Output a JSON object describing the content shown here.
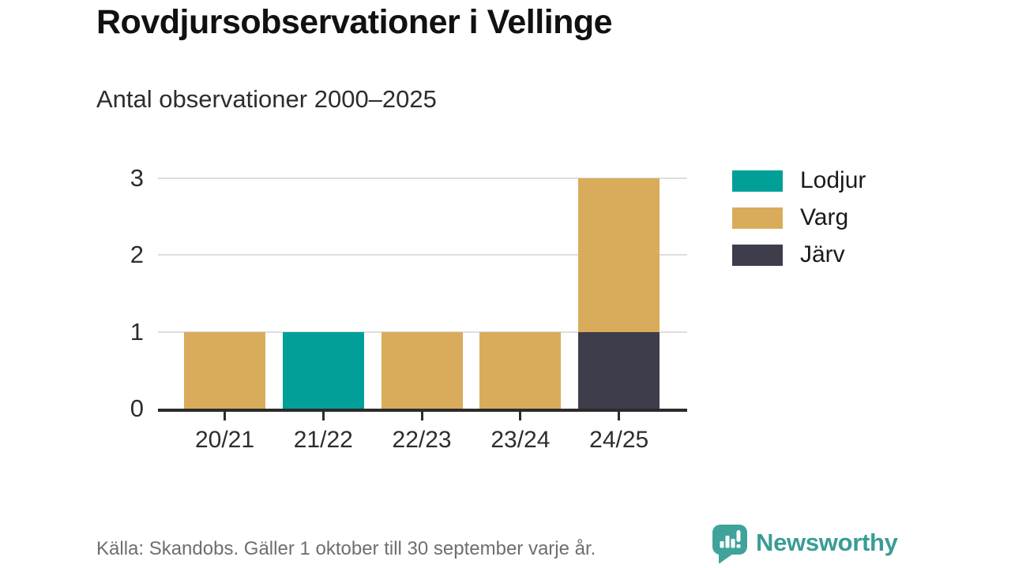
{
  "title": "Rovdjursobservationer i Vellinge",
  "subtitle": "Antal observationer 2000–2025",
  "chart_data": {
    "type": "bar",
    "stacked": true,
    "title": "Rovdjursobservationer i Vellinge",
    "subtitle": "Antal observationer 2000–2025",
    "categories": [
      "20/21",
      "21/22",
      "22/23",
      "23/24",
      "24/25"
    ],
    "series": [
      {
        "name": "Lodjur",
        "color": "#00a098",
        "values": [
          0,
          1,
          0,
          0,
          0
        ]
      },
      {
        "name": "Varg",
        "color": "#d9ac5c",
        "values": [
          1,
          0,
          1,
          1,
          2
        ]
      },
      {
        "name": "Järv",
        "color": "#3e3d4c",
        "values": [
          0,
          0,
          0,
          0,
          1
        ]
      }
    ],
    "stack_order_bottom_to_top": [
      "Järv",
      "Varg",
      "Lodjur"
    ],
    "totals_by_category": [
      1,
      1,
      1,
      1,
      3
    ],
    "ylim": [
      0,
      3
    ],
    "yticks": [
      0,
      1,
      2,
      3
    ],
    "grid": "horizontal",
    "legend_position": "right"
  },
  "footer": {
    "source": "Källa: Skandobs. Gäller 1 oktober till 30 september varje år."
  },
  "logo": {
    "text": "Newsworthy",
    "icon": "newsworthy-speech-bubble-bar-chart-icon",
    "color": "#3a9c95"
  },
  "colors": {
    "axis": "#2b2b2b",
    "gridline": "#dedede",
    "title_text": "#111111",
    "body_text": "#2d2d2d",
    "muted_text": "#6e6e6e"
  }
}
